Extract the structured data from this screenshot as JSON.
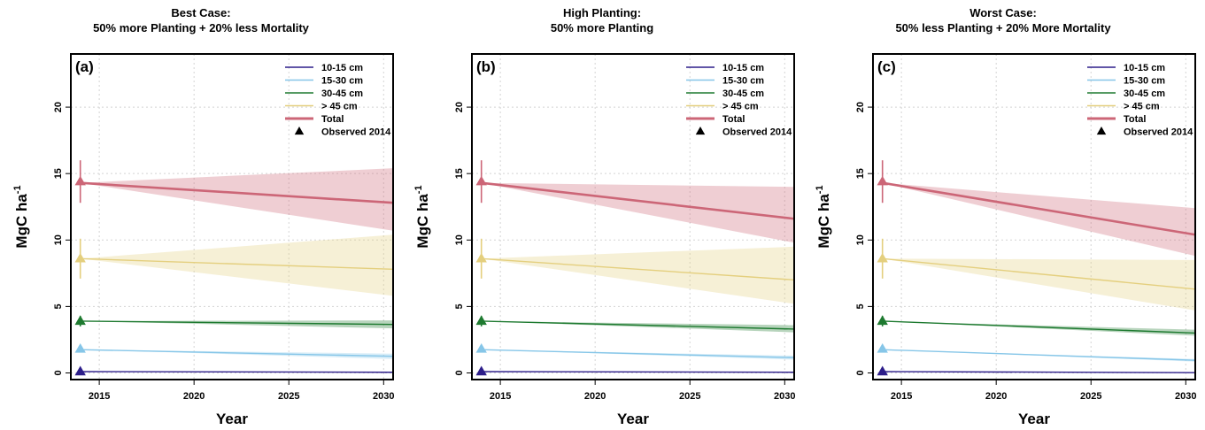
{
  "chart_data": [
    {
      "type": "line",
      "panel_label": "(a)",
      "title": "Best Case:",
      "subtitle": "50% more Planting + 20% less Mortality",
      "xlabel": "Year",
      "ylabel": "MgC ha",
      "ylabel_sup": "-1",
      "xlim": [
        2013.5,
        2030.5
      ],
      "ylim": [
        -0.5,
        24
      ],
      "xticks": [
        2015,
        2020,
        2025,
        2030
      ],
      "yticks": [
        0,
        5,
        10,
        15,
        20
      ],
      "grid": true,
      "legend_position": "top-right",
      "x": [
        2014,
        2030.5
      ],
      "series": [
        {
          "name": "10-15 cm",
          "color": "#2d1e8a",
          "values": [
            0.1,
            0.05
          ],
          "lower": [
            0.1,
            0.0
          ],
          "upper": [
            0.1,
            0.1
          ]
        },
        {
          "name": "15-30 cm",
          "color": "#86c6e8",
          "values": [
            1.75,
            1.25
          ],
          "lower": [
            1.75,
            1.05
          ],
          "upper": [
            1.75,
            1.45
          ]
        },
        {
          "name": "30-45 cm",
          "color": "#1e7a30",
          "values": [
            3.9,
            3.65
          ],
          "lower": [
            3.9,
            3.35
          ],
          "upper": [
            3.9,
            3.95
          ]
        },
        {
          "name": "> 45 cm",
          "color": "#e4cf7e",
          "values": [
            8.6,
            7.8
          ],
          "lower": [
            8.6,
            5.8
          ],
          "upper": [
            8.6,
            10.4
          ]
        },
        {
          "name": "Total",
          "color": "#cc6677",
          "values": [
            14.3,
            12.8
          ],
          "lower": [
            14.3,
            10.7
          ],
          "upper": [
            14.3,
            15.4
          ]
        }
      ],
      "observed": {
        "name": "Observed 2014",
        "year": 2014,
        "points": [
          {
            "value": 0.1,
            "err": 0.1,
            "color": "#2d1e8a"
          },
          {
            "value": 1.8,
            "err": 0.2,
            "color": "#86c6e8"
          },
          {
            "value": 3.9,
            "err": 0.4,
            "color": "#1e7a30"
          },
          {
            "value": 8.6,
            "err": 1.5,
            "color": "#e4cf7e"
          },
          {
            "value": 14.4,
            "err": 1.6,
            "color": "#cc6677"
          }
        ]
      }
    },
    {
      "type": "line",
      "panel_label": "(b)",
      "title": "High Planting:",
      "subtitle": "50% more Planting",
      "xlabel": "Year",
      "ylabel": "MgC ha",
      "ylabel_sup": "-1",
      "xlim": [
        2013.5,
        2030.5
      ],
      "ylim": [
        -0.5,
        24
      ],
      "xticks": [
        2015,
        2020,
        2025,
        2030
      ],
      "yticks": [
        0,
        5,
        10,
        15,
        20
      ],
      "grid": true,
      "legend_position": "top-right",
      "x": [
        2014,
        2030.5
      ],
      "series": [
        {
          "name": "10-15 cm",
          "color": "#2d1e8a",
          "values": [
            0.1,
            0.05
          ],
          "lower": [
            0.1,
            0.0
          ],
          "upper": [
            0.1,
            0.1
          ]
        },
        {
          "name": "15-30 cm",
          "color": "#86c6e8",
          "values": [
            1.75,
            1.15
          ],
          "lower": [
            1.75,
            1.0
          ],
          "upper": [
            1.75,
            1.3
          ]
        },
        {
          "name": "30-45 cm",
          "color": "#1e7a30",
          "values": [
            3.9,
            3.3
          ],
          "lower": [
            3.9,
            3.05
          ],
          "upper": [
            3.9,
            3.6
          ]
        },
        {
          "name": "> 45 cm",
          "color": "#e4cf7e",
          "values": [
            8.6,
            7.0
          ],
          "lower": [
            8.6,
            5.2
          ],
          "upper": [
            8.6,
            9.5
          ]
        },
        {
          "name": "Total",
          "color": "#cc6677",
          "values": [
            14.3,
            11.6
          ],
          "lower": [
            14.3,
            9.8
          ],
          "upper": [
            14.3,
            14.0
          ]
        }
      ],
      "observed": {
        "name": "Observed 2014",
        "year": 2014,
        "points": [
          {
            "value": 0.1,
            "err": 0.1,
            "color": "#2d1e8a"
          },
          {
            "value": 1.8,
            "err": 0.2,
            "color": "#86c6e8"
          },
          {
            "value": 3.9,
            "err": 0.4,
            "color": "#1e7a30"
          },
          {
            "value": 8.6,
            "err": 1.5,
            "color": "#e4cf7e"
          },
          {
            "value": 14.4,
            "err": 1.6,
            "color": "#cc6677"
          }
        ]
      }
    },
    {
      "type": "line",
      "panel_label": "(c)",
      "title": "Worst Case:",
      "subtitle": "50% less Planting + 20% More Mortality",
      "xlabel": "Year",
      "ylabel": "MgC ha",
      "ylabel_sup": "-1",
      "xlim": [
        2013.5,
        2030.5
      ],
      "ylim": [
        -0.5,
        24
      ],
      "xticks": [
        2015,
        2020,
        2025,
        2030
      ],
      "yticks": [
        0,
        5,
        10,
        15,
        20
      ],
      "grid": true,
      "legend_position": "top-right",
      "x": [
        2014,
        2030.5
      ],
      "series": [
        {
          "name": "10-15 cm",
          "color": "#2d1e8a",
          "values": [
            0.1,
            0.02
          ],
          "lower": [
            0.1,
            0.0
          ],
          "upper": [
            0.1,
            0.06
          ]
        },
        {
          "name": "15-30 cm",
          "color": "#86c6e8",
          "values": [
            1.75,
            0.95
          ],
          "lower": [
            1.75,
            0.85
          ],
          "upper": [
            1.75,
            1.05
          ]
        },
        {
          "name": "30-45 cm",
          "color": "#1e7a30",
          "values": [
            3.9,
            3.0
          ],
          "lower": [
            3.9,
            2.8
          ],
          "upper": [
            3.9,
            3.25
          ]
        },
        {
          "name": "> 45 cm",
          "color": "#e4cf7e",
          "values": [
            8.6,
            6.3
          ],
          "lower": [
            8.6,
            4.7
          ],
          "upper": [
            8.6,
            8.5
          ]
        },
        {
          "name": "Total",
          "color": "#cc6677",
          "values": [
            14.3,
            10.4
          ],
          "lower": [
            14.3,
            8.8
          ],
          "upper": [
            14.3,
            12.4
          ]
        }
      ],
      "observed": {
        "name": "Observed 2014",
        "year": 2014,
        "points": [
          {
            "value": 0.1,
            "err": 0.1,
            "color": "#2d1e8a"
          },
          {
            "value": 1.8,
            "err": 0.2,
            "color": "#86c6e8"
          },
          {
            "value": 3.9,
            "err": 0.4,
            "color": "#1e7a30"
          },
          {
            "value": 8.6,
            "err": 1.5,
            "color": "#e4cf7e"
          },
          {
            "value": 14.4,
            "err": 1.6,
            "color": "#cc6677"
          }
        ]
      }
    }
  ]
}
